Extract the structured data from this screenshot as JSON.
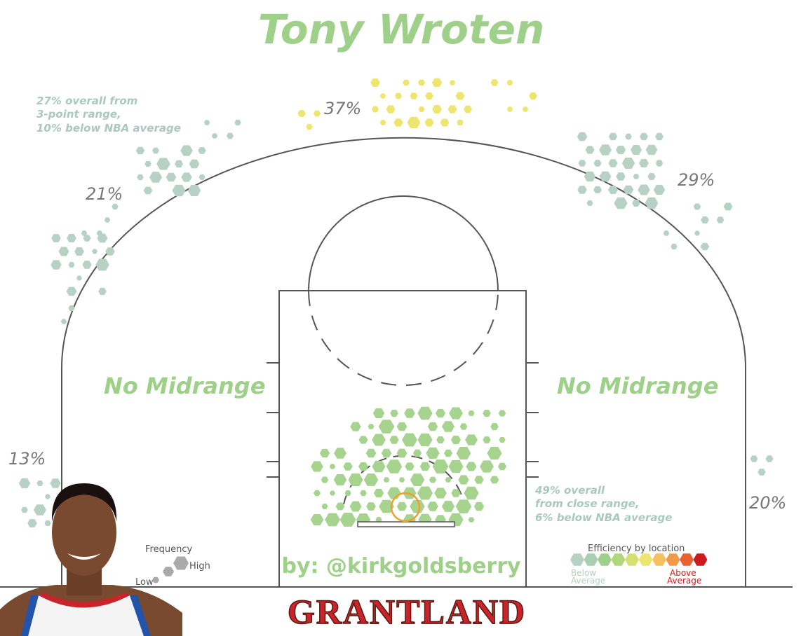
{
  "title": "Tony Wroten",
  "three_point_note": [
    "27% overall from",
    "3-point range,",
    "10% below NBA average"
  ],
  "zones": {
    "top": "37%",
    "left_wing": "21%",
    "right_wing": "29%",
    "left_corner": "13%",
    "right_corner": "20%"
  },
  "midrange": {
    "left": "No Midrange",
    "right": "No Midrange"
  },
  "close_note": [
    "49% overall",
    "from close range,",
    "6% below NBA average"
  ],
  "frequency_legend": {
    "title": "Frequency",
    "high": "High",
    "low": "Low"
  },
  "efficiency_legend": {
    "title": "Efficiency by location",
    "below": [
      "Below",
      "Average"
    ],
    "above": [
      "Above",
      "Average"
    ]
  },
  "byline": "by: @kirkgoldsberry",
  "brand": "GRANTLAND"
}
